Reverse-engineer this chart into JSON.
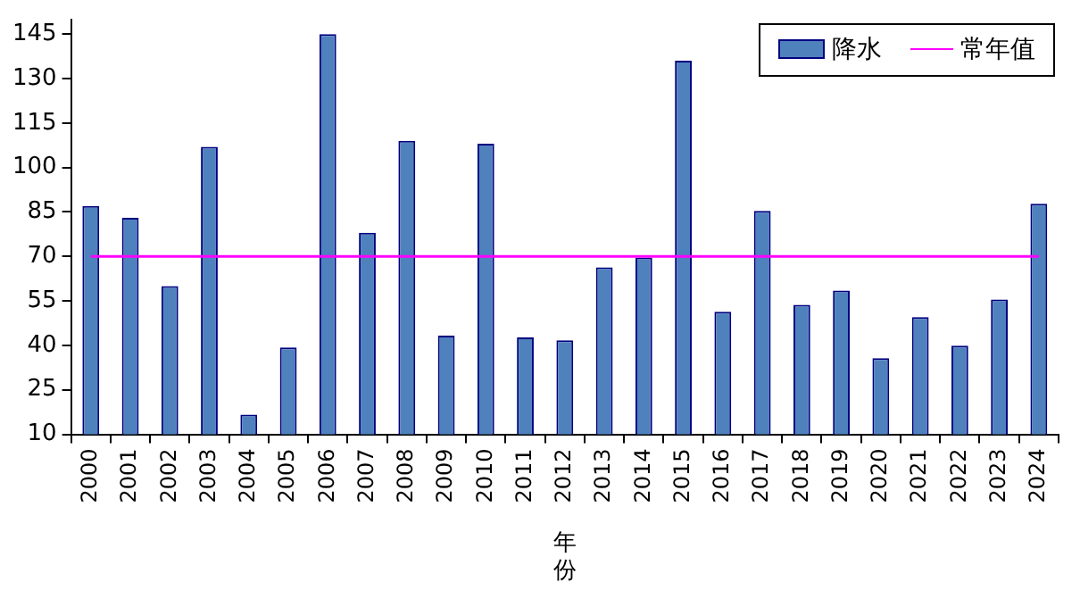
{
  "chart_data": {
    "type": "bar",
    "xlabel": "年份",
    "categories": [
      "2000",
      "2001",
      "2002",
      "2003",
      "2004",
      "2005",
      "2006",
      "2007",
      "2008",
      "2009",
      "2010",
      "2011",
      "2012",
      "2013",
      "2014",
      "2015",
      "2016",
      "2017",
      "2018",
      "2019",
      "2020",
      "2021",
      "2022",
      "2023",
      "2024"
    ],
    "series": [
      {
        "name": "降水",
        "color": "#4f81bd",
        "values": [
          87,
          83,
          60,
          107,
          16.6,
          39.3,
          145,
          78,
          109,
          43.3,
          108,
          42.7,
          41.7,
          66.3,
          69.6,
          136,
          51.3,
          85.4,
          53.7,
          58.5,
          35.7,
          49.5,
          39.9,
          55.5,
          87.8
        ]
      },
      {
        "name": "常年值",
        "type": "line",
        "color": "#ff00ff",
        "values": [
          70,
          70,
          70,
          70,
          70,
          70,
          70,
          70,
          70,
          70,
          70,
          70,
          70,
          70,
          70,
          70,
          70,
          70,
          70,
          70,
          70,
          70,
          70,
          70,
          70
        ]
      }
    ],
    "ylim": [
      10,
      150
    ],
    "yticks": [
      10,
      25,
      40,
      55,
      70,
      85,
      100,
      115,
      130,
      145
    ],
    "grid": false,
    "legend": "top right",
    "marker": "none"
  }
}
